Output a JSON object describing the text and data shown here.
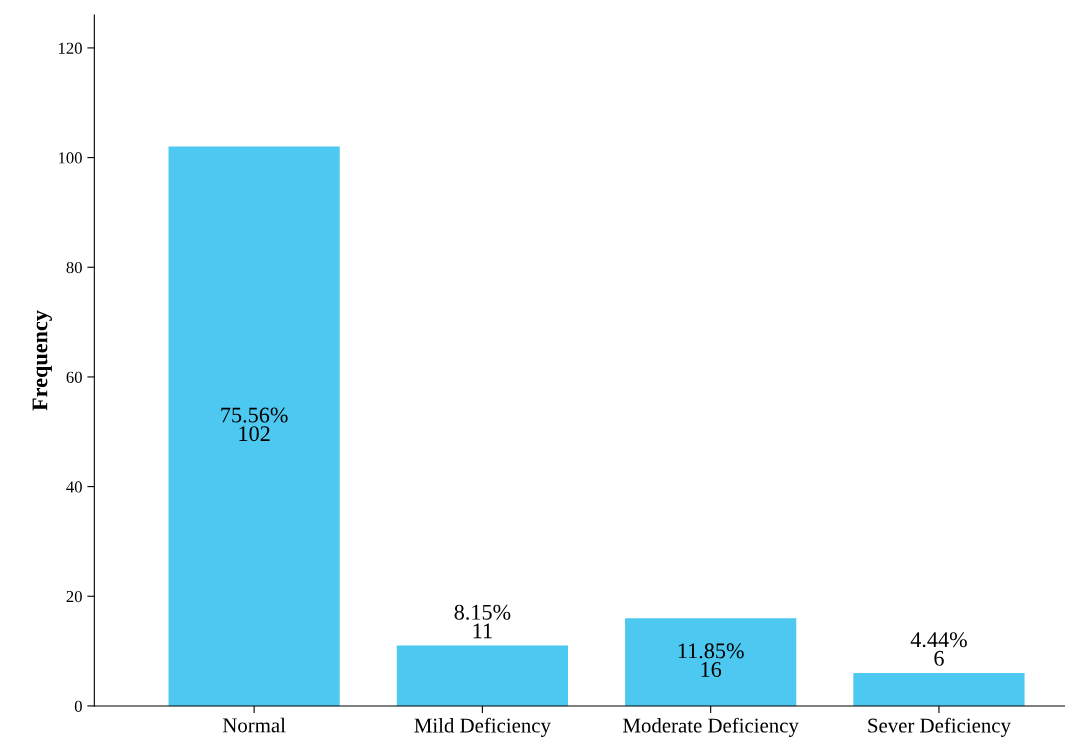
{
  "chart_data": {
    "type": "bar",
    "ylabel": "Frequency",
    "categories": [
      "Normal",
      "Mild Deficiency",
      "Moderate Deficiency",
      "Sever Deficiency"
    ],
    "values": [
      102,
      11,
      16,
      6
    ],
    "value_labels": [
      "75.56%\n102",
      "8.15%\n11",
      "11.85%\n16",
      "4.44%\n6"
    ],
    "color": "#4dc8f0",
    "ylim": [
      0,
      126
    ],
    "yticks": [
      0,
      20,
      40,
      60,
      80,
      100,
      120
    ],
    "grid": false,
    "legend": false
  }
}
